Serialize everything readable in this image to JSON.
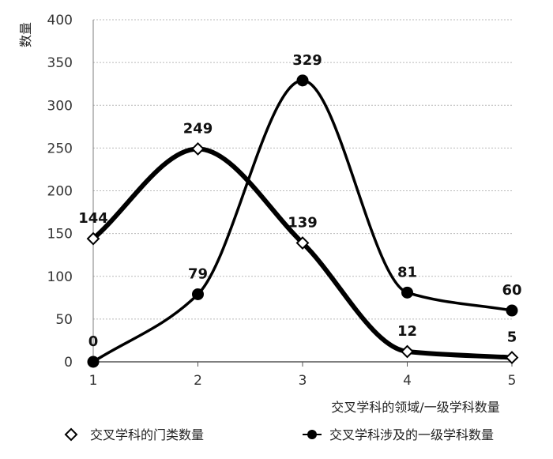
{
  "chart_data": {
    "type": "line",
    "ylabel": "数量",
    "xlabel": "交叉学科的领域/一级学科数量",
    "x": [
      1,
      2,
      3,
      4,
      5
    ],
    "ylim": [
      0,
      400
    ],
    "yticks": [
      0,
      50,
      100,
      150,
      200,
      250,
      300,
      350,
      400
    ],
    "grid": "horizontal dotted",
    "legend_position": "bottom",
    "series": [
      {
        "name": "交叉学科的门类数量",
        "values": [
          144,
          249,
          139,
          12,
          5
        ],
        "marker": "open-diamond",
        "color": "#000000"
      },
      {
        "name": "交叉学科涉及的一级学科数量",
        "values": [
          0,
          79,
          329,
          81,
          60
        ],
        "marker": "filled-circle",
        "color": "#000000"
      }
    ]
  }
}
